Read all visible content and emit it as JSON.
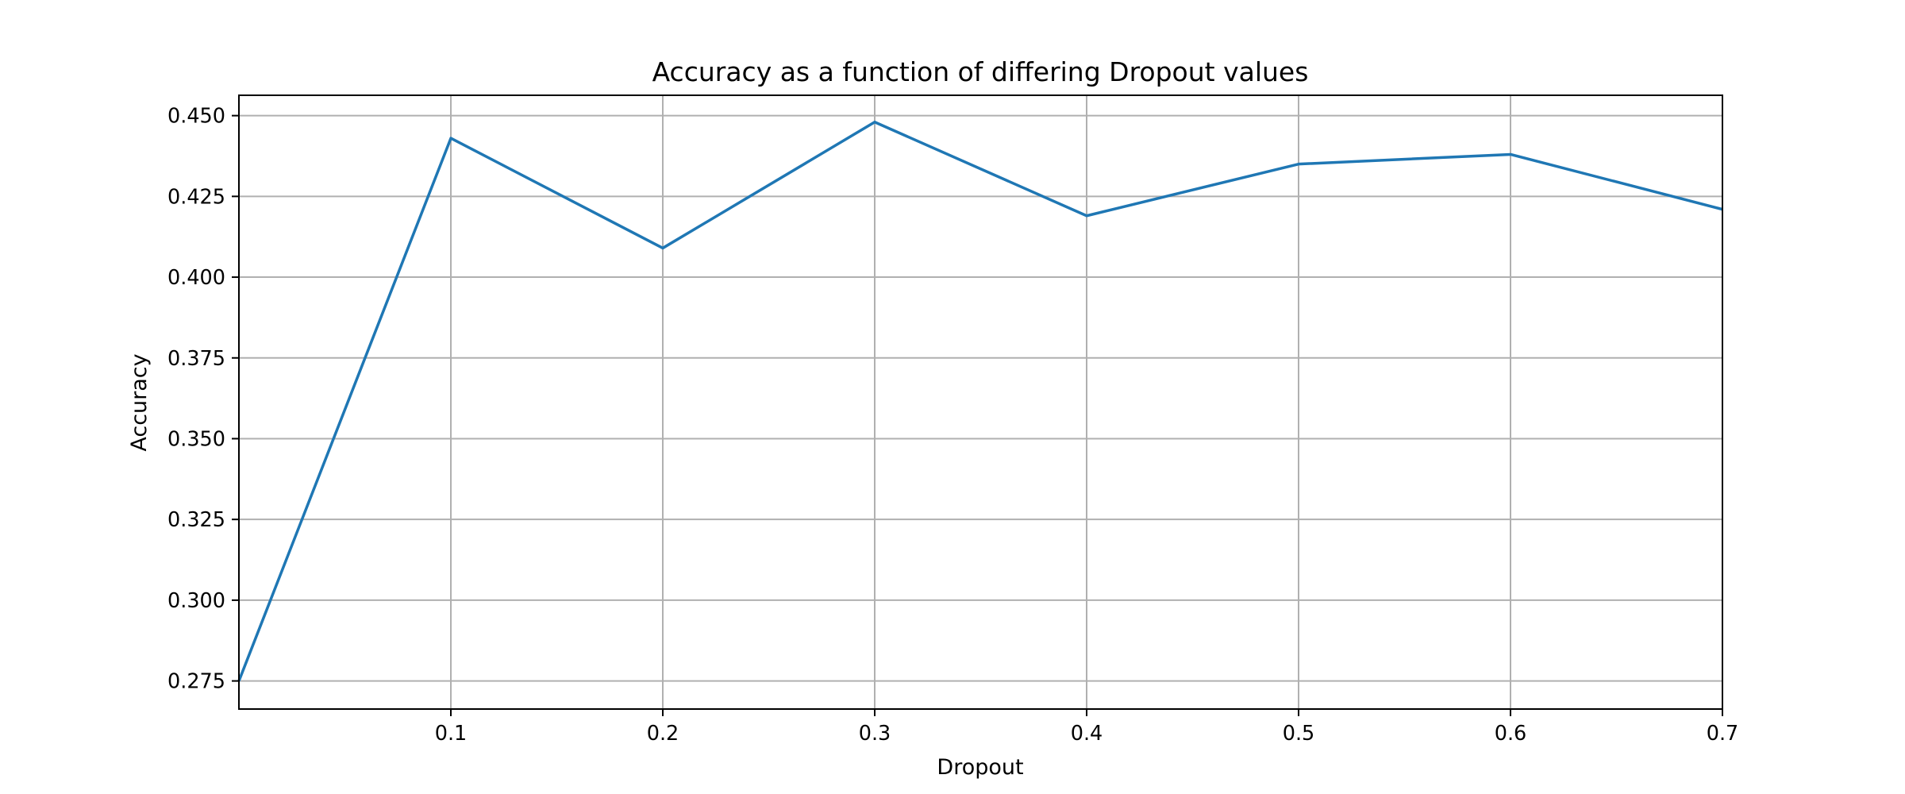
{
  "chart_data": {
    "type": "line",
    "title": "Accuracy as a function of differing Dropout values",
    "xlabel": "Dropout",
    "ylabel": "Accuracy",
    "x": [
      0.0,
      0.1,
      0.2,
      0.3,
      0.4,
      0.5,
      0.6,
      0.7
    ],
    "series": [
      {
        "values": [
          0.275,
          0.443,
          0.409,
          0.448,
          0.419,
          0.435,
          0.438,
          0.421
        ],
        "color": "#1f77b4"
      }
    ],
    "xlim": [
      0.0,
      0.7
    ],
    "ylim": [
      0.2663,
      0.4563
    ],
    "xticks": [
      0.1,
      0.2,
      0.3,
      0.4,
      0.5,
      0.6,
      0.7
    ],
    "xtick_labels": [
      "0.1",
      "0.2",
      "0.3",
      "0.4",
      "0.5",
      "0.6",
      "0.7"
    ],
    "yticks": [
      0.275,
      0.3,
      0.325,
      0.35,
      0.375,
      0.4,
      0.425,
      0.45
    ],
    "ytick_labels": [
      "0.275",
      "0.300",
      "0.325",
      "0.350",
      "0.375",
      "0.400",
      "0.425",
      "0.450"
    ],
    "grid": true,
    "legend": false
  }
}
